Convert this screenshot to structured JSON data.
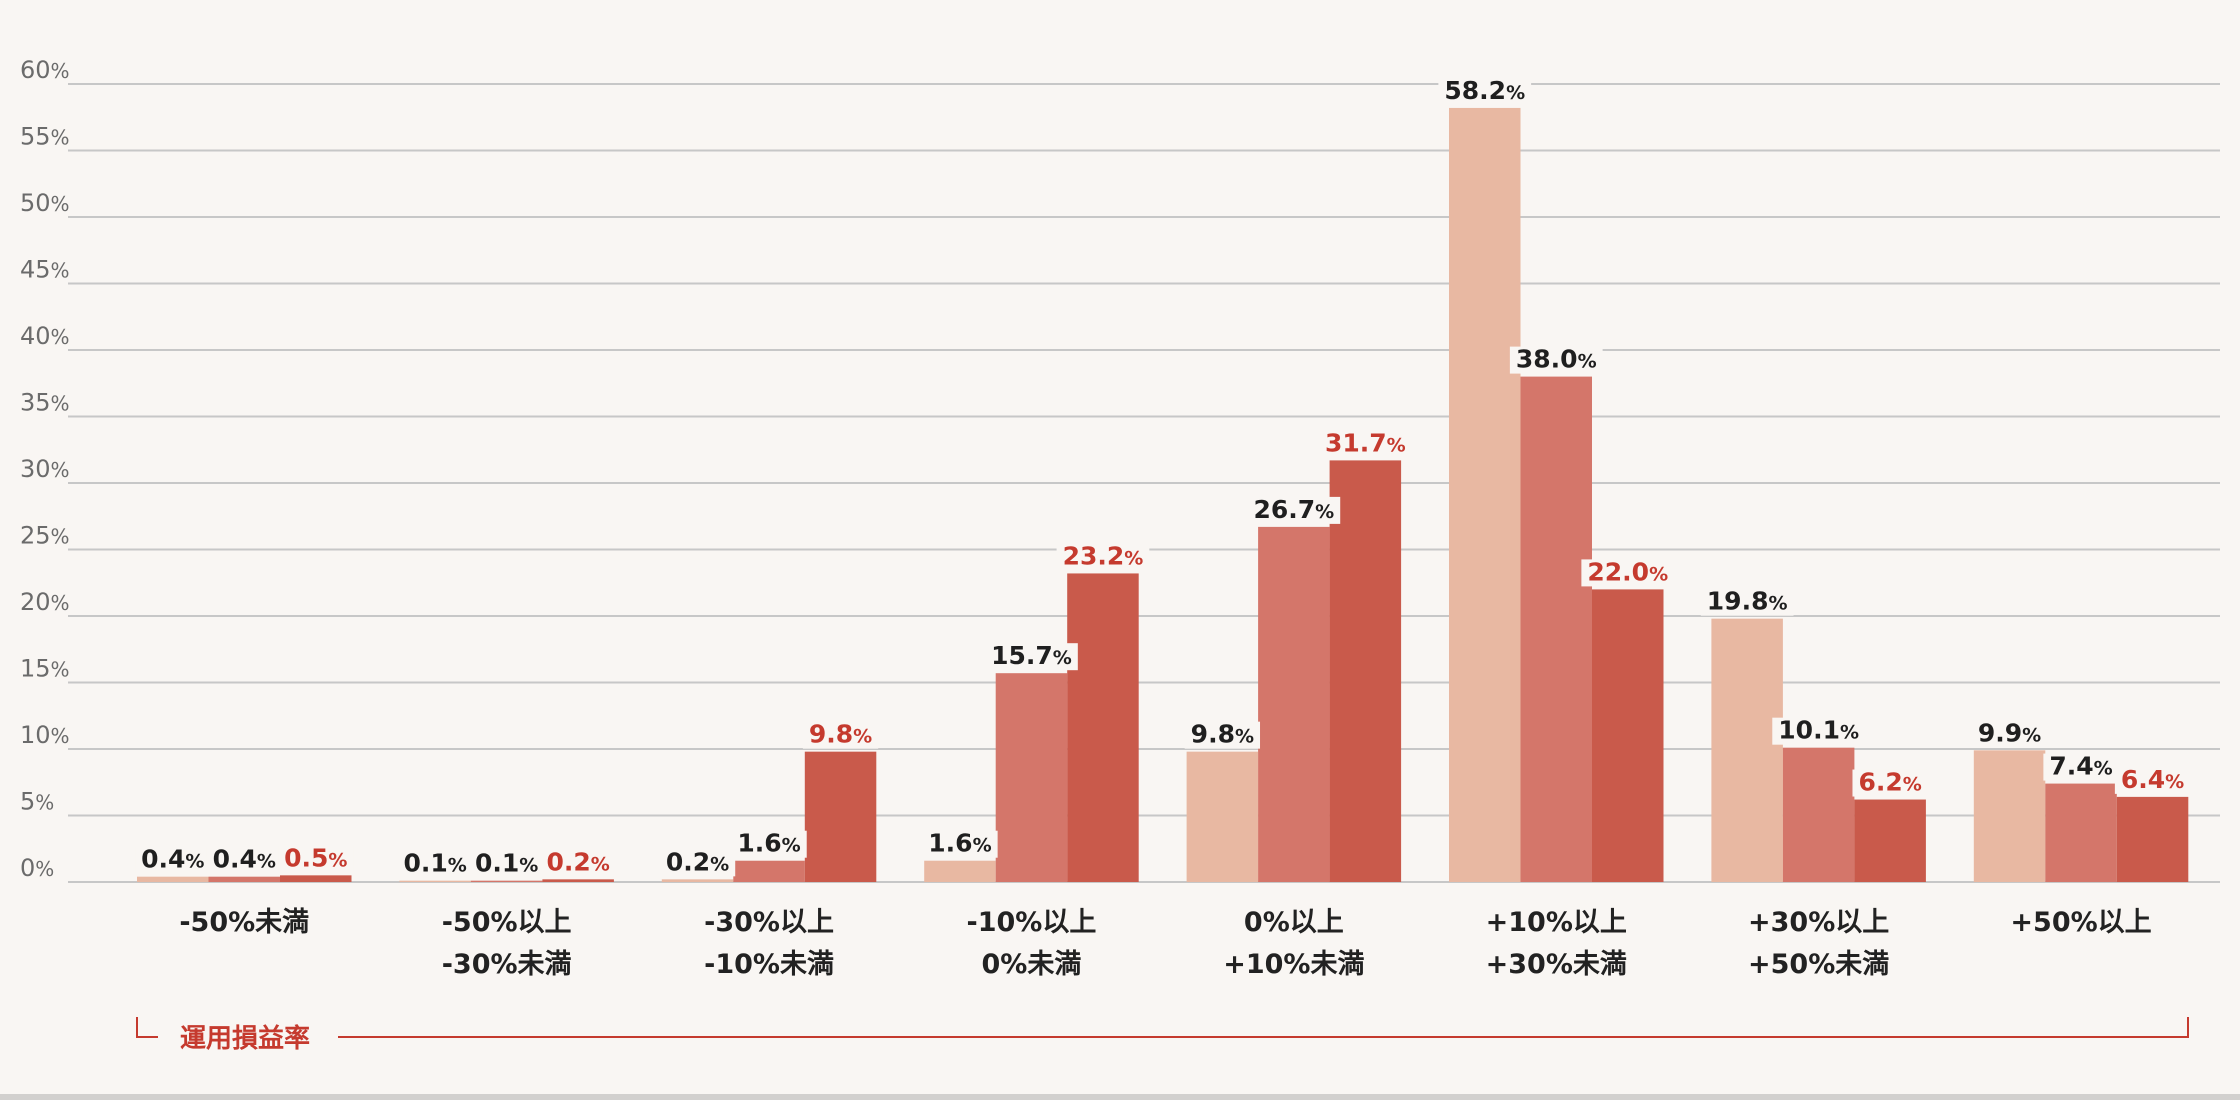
{
  "chart_data": {
    "type": "bar",
    "ylim": [
      0,
      60
    ],
    "y_ticks": [
      {
        "num": "0",
        "unit": "%"
      },
      {
        "num": "5",
        "unit": "%"
      },
      {
        "num": "10",
        "unit": "%"
      },
      {
        "num": "15",
        "unit": "%"
      },
      {
        "num": "20",
        "unit": "%"
      },
      {
        "num": "25",
        "unit": "%"
      },
      {
        "num": "30",
        "unit": "%"
      },
      {
        "num": "35",
        "unit": "%"
      },
      {
        "num": "40",
        "unit": "%"
      },
      {
        "num": "45",
        "unit": "%"
      },
      {
        "num": "50",
        "unit": "%"
      },
      {
        "num": "55",
        "unit": "%"
      },
      {
        "num": "60",
        "unit": "%"
      }
    ],
    "grid": true,
    "categories": [
      [
        "-50%未満"
      ],
      [
        "-50%以上",
        "-30%未満"
      ],
      [
        "-30%以上",
        "-10%未満"
      ],
      [
        "-10%以上",
        "0%未満"
      ],
      [
        "0%以上",
        "+10%未満"
      ],
      [
        "+10%以上",
        "+30%未満"
      ],
      [
        "+30%以上",
        "+50%未満"
      ],
      [
        "+50%以上"
      ]
    ],
    "series": [
      {
        "values": [
          0.4,
          0.1,
          0.2,
          1.6,
          9.8,
          58.2,
          19.8,
          9.9
        ],
        "color": "#e8b8a2",
        "label_color": "#1f1f1f"
      },
      {
        "values": [
          0.4,
          0.1,
          1.6,
          15.7,
          26.7,
          38.0,
          10.1,
          7.4
        ],
        "color": "#d4766a",
        "label_color": "#1f1f1f"
      },
      {
        "values": [
          0.5,
          0.2,
          9.8,
          23.2,
          31.7,
          22.0,
          6.2,
          6.4
        ],
        "color": "#c95a4b",
        "label_color": "#c53a2e"
      }
    ],
    "label_unit": "%",
    "xlabel": "運用損益率",
    "colors": {
      "grid": "#c7c7c7",
      "axis_label": "#c53a2e",
      "background": "#f9f6f3"
    }
  }
}
